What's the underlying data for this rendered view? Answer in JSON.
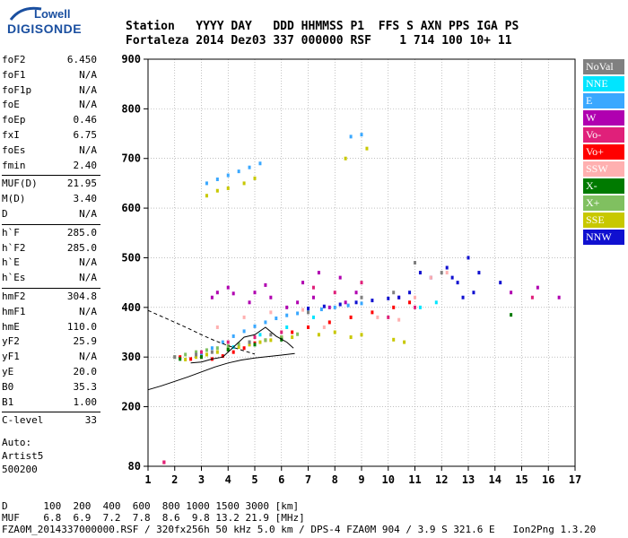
{
  "logo": {
    "line1": "Lowell",
    "line2": "DIGISONDE"
  },
  "header": {
    "labels": "Station   YYYY DAY   DDD HHMMSS P1  FFS S AXN PPS IGA PS",
    "values": "Fortaleza 2014 Dez03 337 000000 RSF    1 714 100 10+ 11"
  },
  "params": [
    {
      "label": "foF2",
      "value": "6.450"
    },
    {
      "label": "foF1",
      "value": "N/A"
    },
    {
      "label": "foF1p",
      "value": "N/A"
    },
    {
      "label": "foE",
      "value": "N/A"
    },
    {
      "label": "foEp",
      "value": "0.46"
    },
    {
      "label": "fxI",
      "value": "6.75"
    },
    {
      "label": "foEs",
      "value": "N/A"
    },
    {
      "label": "fmin",
      "value": "2.40"
    },
    {
      "label": "MUF(D)",
      "value": "21.95"
    },
    {
      "label": "M(D)",
      "value": "3.40"
    },
    {
      "label": "D",
      "value": "N/A"
    },
    {
      "label": "h`F",
      "value": "285.0"
    },
    {
      "label": "h`F2",
      "value": "285.0"
    },
    {
      "label": "h`E",
      "value": "N/A"
    },
    {
      "label": "h`Es",
      "value": "N/A"
    },
    {
      "label": "hmF2",
      "value": "304.8"
    },
    {
      "label": "hmF1",
      "value": "N/A"
    },
    {
      "label": "hmE",
      "value": "110.0"
    },
    {
      "label": "yF2",
      "value": "25.9"
    },
    {
      "label": "yF1",
      "value": "N/A"
    },
    {
      "label": "yE",
      "value": "20.0"
    },
    {
      "label": "B0",
      "value": "35.3"
    },
    {
      "label": "B1",
      "value": "1.00"
    },
    {
      "label": "C-level",
      "value": "33"
    }
  ],
  "auto": {
    "line1": "Auto:",
    "line2": "Artist5",
    "line3": "500200"
  },
  "footer": {
    "line1": "D      100  200  400  600  800 1000 1500 3000 [km]",
    "line2": "MUF    6.8  6.9  7.2  7.8  8.6  9.8 13.2 21.9 [MHz]",
    "line3": "FZA0M_2014337000000.RSF / 320fx256h 50 kHz 5.0 km / DPS-4 FZA0M 904 / 3.9 S 321.6 E   Ion2Png 1.3.20"
  },
  "legend": [
    {
      "label": "NoVal",
      "color": "#808080"
    },
    {
      "label": "NNE",
      "color": "#00e5ff"
    },
    {
      "label": "E",
      "color": "#3aa8ff"
    },
    {
      "label": "W",
      "color": "#b000b0"
    },
    {
      "label": "Vo-",
      "color": "#e0207a"
    },
    {
      "label": "Vo+",
      "color": "#ff0000"
    },
    {
      "label": "SSW",
      "color": "#ffb0b0"
    },
    {
      "label": "X-",
      "color": "#007a00"
    },
    {
      "label": "X+",
      "color": "#80c060"
    },
    {
      "label": "SSE",
      "color": "#c8c800"
    },
    {
      "label": "NNW",
      "color": "#1010d0"
    }
  ],
  "chart_data": {
    "type": "scatter",
    "title": "",
    "xlabel": "",
    "ylabel": "",
    "xlim": [
      1,
      17
    ],
    "ylim": [
      80,
      900
    ],
    "x_ticks": [
      1,
      2,
      3,
      4,
      5,
      6,
      7,
      8,
      9,
      10,
      11,
      12,
      13,
      14,
      15,
      16,
      17
    ],
    "y_ticks": [
      80,
      200,
      300,
      400,
      500,
      600,
      700,
      800,
      900
    ],
    "grid": true,
    "legend_position": "right",
    "series": [
      {
        "name": "E",
        "points": [
          [
            3.0,
            306
          ],
          [
            3.4,
            318
          ],
          [
            3.8,
            330
          ],
          [
            4.2,
            342
          ],
          [
            4.6,
            352
          ],
          [
            5.0,
            362
          ],
          [
            5.4,
            370
          ],
          [
            5.8,
            378
          ],
          [
            6.2,
            384
          ],
          [
            6.6,
            388
          ],
          [
            7.0,
            392
          ],
          [
            7.5,
            396
          ],
          [
            8.0,
            400
          ],
          [
            8.5,
            404
          ],
          [
            9.0,
            408
          ],
          [
            3.2,
            650
          ],
          [
            3.6,
            658
          ],
          [
            4.0,
            666
          ],
          [
            4.4,
            674
          ],
          [
            4.8,
            682
          ],
          [
            5.2,
            690
          ],
          [
            8.6,
            744
          ],
          [
            9.0,
            748
          ]
        ]
      },
      {
        "name": "W",
        "points": [
          [
            3.4,
            420
          ],
          [
            3.6,
            430
          ],
          [
            4.0,
            440
          ],
          [
            4.2,
            428
          ],
          [
            4.8,
            410
          ],
          [
            5.0,
            430
          ],
          [
            5.4,
            445
          ],
          [
            5.6,
            420
          ],
          [
            6.2,
            400
          ],
          [
            6.6,
            410
          ],
          [
            6.8,
            450
          ],
          [
            7.2,
            420
          ],
          [
            7.4,
            470
          ],
          [
            7.8,
            400
          ],
          [
            8.2,
            460
          ],
          [
            8.4,
            410
          ],
          [
            8.8,
            430
          ],
          [
            10.4,
            420
          ],
          [
            14.6,
            430
          ],
          [
            15.6,
            440
          ],
          [
            16.4,
            420
          ]
        ]
      },
      {
        "name": "NNW",
        "points": [
          [
            7.0,
            398
          ],
          [
            7.6,
            402
          ],
          [
            8.2,
            406
          ],
          [
            8.8,
            410
          ],
          [
            9.4,
            414
          ],
          [
            10.0,
            418
          ],
          [
            10.4,
            420
          ],
          [
            10.8,
            430
          ],
          [
            11.2,
            470
          ],
          [
            11.6,
            460
          ],
          [
            12.2,
            480
          ],
          [
            12.4,
            460
          ],
          [
            12.6,
            450
          ],
          [
            12.8,
            420
          ],
          [
            13.0,
            500
          ],
          [
            13.2,
            430
          ],
          [
            13.4,
            470
          ],
          [
            14.2,
            450
          ]
        ]
      },
      {
        "name": "SSE",
        "points": [
          [
            2.4,
            295
          ],
          [
            2.8,
            300
          ],
          [
            3.2,
            305
          ],
          [
            3.6,
            310
          ],
          [
            4.0,
            315
          ],
          [
            4.4,
            320
          ],
          [
            4.8,
            325
          ],
          [
            5.2,
            330
          ],
          [
            5.6,
            334
          ],
          [
            6.0,
            338
          ],
          [
            6.4,
            340
          ],
          [
            7.4,
            345
          ],
          [
            8.0,
            350
          ],
          [
            8.6,
            340
          ],
          [
            9.0,
            345
          ],
          [
            10.2,
            335
          ],
          [
            10.6,
            330
          ],
          [
            3.2,
            625
          ],
          [
            3.6,
            635
          ],
          [
            4.0,
            640
          ],
          [
            4.6,
            650
          ],
          [
            5.0,
            660
          ],
          [
            8.4,
            700
          ],
          [
            9.2,
            720
          ]
        ]
      },
      {
        "name": "Vo+",
        "points": [
          [
            2.2,
            300
          ],
          [
            2.6,
            296
          ],
          [
            3.0,
            300
          ],
          [
            3.4,
            296
          ],
          [
            3.8,
            302
          ],
          [
            4.2,
            310
          ],
          [
            4.6,
            318
          ],
          [
            5.0,
            328
          ],
          [
            5.4,
            334
          ],
          [
            6.0,
            340
          ],
          [
            6.4,
            350
          ],
          [
            7.0,
            360
          ],
          [
            7.8,
            370
          ],
          [
            8.6,
            380
          ],
          [
            9.4,
            390
          ],
          [
            10.2,
            400
          ],
          [
            10.8,
            410
          ],
          [
            1.6,
            88
          ]
        ]
      },
      {
        "name": "X+",
        "points": [
          [
            2.0,
            300
          ],
          [
            2.4,
            305
          ],
          [
            2.8,
            310
          ],
          [
            3.2,
            314
          ],
          [
            3.6,
            318
          ],
          [
            4.0,
            322
          ],
          [
            4.4,
            326
          ],
          [
            4.8,
            330
          ],
          [
            5.4,
            334
          ],
          [
            6.0,
            340
          ],
          [
            6.6,
            346
          ]
        ]
      },
      {
        "name": "SSW",
        "points": [
          [
            3.6,
            360
          ],
          [
            4.6,
            380
          ],
          [
            5.6,
            390
          ],
          [
            6.8,
            395
          ],
          [
            7.6,
            360
          ],
          [
            9.6,
            380
          ],
          [
            10.4,
            375
          ],
          [
            11.0,
            420
          ],
          [
            11.6,
            460
          ],
          [
            12.2,
            470
          ]
        ]
      },
      {
        "name": "Vo-",
        "points": [
          [
            3.0,
            310
          ],
          [
            4.0,
            330
          ],
          [
            5.0,
            340
          ],
          [
            6.0,
            350
          ],
          [
            7.2,
            440
          ],
          [
            8.0,
            430
          ],
          [
            9.0,
            450
          ],
          [
            10.0,
            380
          ],
          [
            11.0,
            400
          ],
          [
            15.4,
            420
          ],
          [
            1.6,
            88
          ]
        ]
      },
      {
        "name": "X-",
        "points": [
          [
            2.2,
            296
          ],
          [
            3.0,
            300
          ],
          [
            4.0,
            315
          ],
          [
            5.0,
            325
          ],
          [
            6.0,
            335
          ],
          [
            14.6,
            385
          ]
        ]
      },
      {
        "name": "NNE",
        "points": [
          [
            4.2,
            320
          ],
          [
            5.2,
            345
          ],
          [
            6.2,
            360
          ],
          [
            7.2,
            380
          ],
          [
            11.2,
            400
          ],
          [
            11.8,
            410
          ]
        ]
      },
      {
        "name": "NoVal",
        "points": [
          [
            2.0,
            300
          ],
          [
            2.8,
            305
          ],
          [
            3.4,
            310
          ],
          [
            4.8,
            330
          ],
          [
            5.6,
            345
          ],
          [
            7.0,
            390
          ],
          [
            9.0,
            420
          ],
          [
            10.2,
            430
          ],
          [
            11.0,
            490
          ],
          [
            12.0,
            470
          ]
        ]
      }
    ],
    "profile_curves": [
      {
        "points": [
          [
            1.0,
            394
          ],
          [
            1.5,
            382
          ],
          [
            2.0,
            370
          ],
          [
            2.5,
            358
          ],
          [
            3.0,
            345
          ],
          [
            3.5,
            333
          ],
          [
            4.0,
            323
          ],
          [
            4.5,
            314
          ],
          [
            5.0,
            306
          ]
        ]
      },
      {
        "points": [
          [
            1.0,
            234
          ],
          [
            1.5,
            242
          ],
          [
            2.0,
            251
          ],
          [
            2.5,
            260
          ],
          [
            3.0,
            270
          ],
          [
            3.5,
            280
          ],
          [
            4.0,
            288
          ],
          [
            4.5,
            294
          ],
          [
            5.0,
            298
          ],
          [
            5.5,
            301
          ],
          [
            6.0,
            304
          ],
          [
            6.5,
            307
          ]
        ]
      },
      {
        "points": [
          [
            2.6,
            288
          ],
          [
            3.0,
            290
          ],
          [
            3.4,
            296
          ],
          [
            3.8,
            300
          ],
          [
            4.2,
            320
          ],
          [
            4.6,
            340
          ],
          [
            5.0,
            345
          ],
          [
            5.4,
            360
          ],
          [
            5.8,
            342
          ],
          [
            6.2,
            330
          ],
          [
            6.45,
            318
          ]
        ]
      }
    ]
  }
}
